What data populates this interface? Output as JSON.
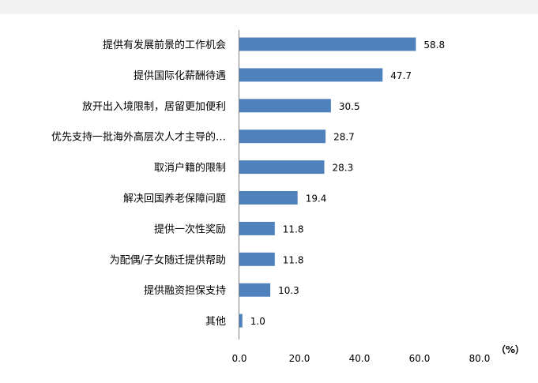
{
  "chart_data": {
    "type": "bar",
    "orientation": "horizontal",
    "categories": [
      "提供有发展前景的工作机会",
      "提供国际化薪酬待遇",
      "放开出入境限制，居留更加便利",
      "优先支持一批海外高层次人才主导的…",
      "取消户籍的限制",
      "解决回国养老保障问题",
      "提供一次性奖励",
      "为配偶/子女随迁提供帮助",
      "提供融资担保支持",
      "其他"
    ],
    "values": [
      58.8,
      47.7,
      30.5,
      28.7,
      28.3,
      19.4,
      11.8,
      11.8,
      10.3,
      1.0
    ],
    "value_labels": [
      "58.8",
      "47.7",
      "30.5",
      "28.7",
      "28.3",
      "19.4",
      "11.8",
      "11.8",
      "10.3",
      "1.0"
    ],
    "xlim": [
      0,
      80
    ],
    "x_ticks": [
      "0.0",
      "20.0",
      "40.0",
      "60.0",
      "80.0"
    ],
    "unit": "（%）",
    "bar_color": "#4f81bd",
    "grid": false
  }
}
